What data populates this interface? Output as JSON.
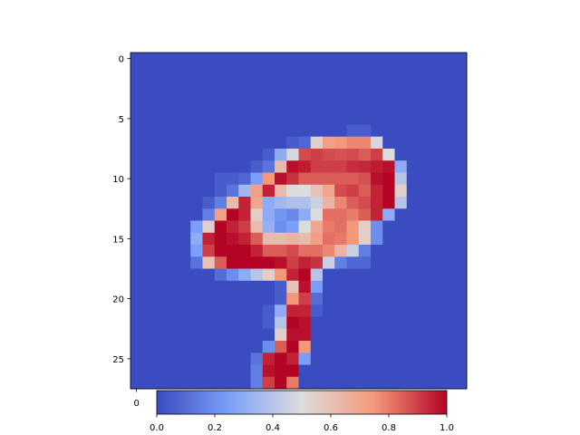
{
  "chart_data": {
    "type": "heatmap",
    "title": "",
    "xlabel": "",
    "ylabel": "",
    "colormap": "coolwarm",
    "cmap_stops": [
      [
        0.0,
        "#3b4cc0"
      ],
      [
        0.25,
        "#7b9ff9"
      ],
      [
        0.5,
        "#dddcdc"
      ],
      [
        0.75,
        "#f4987a"
      ],
      [
        1.0,
        "#b40426"
      ]
    ],
    "rows": 28,
    "cols": 28,
    "y_ticks": [
      0,
      5,
      10,
      15,
      20,
      25
    ],
    "x_ticks_visible": [
      0
    ],
    "colorbar_ticks": [
      0.0,
      0.2,
      0.4,
      0.6,
      0.8,
      1.0
    ],
    "colorbar_tick_labels": [
      "0.0",
      "0.2",
      "0.4",
      "0.6",
      "0.8",
      "1.0"
    ],
    "grid": false,
    "nonzero_cells": [
      {
        "row": 6,
        "cols": [
          18,
          19
        ],
        "values": [
          0.05,
          0.05
        ]
      },
      {
        "row": 7,
        "cols": [
          13,
          14,
          15,
          16,
          17,
          18,
          19,
          20
        ],
        "values": [
          0.05,
          0.08,
          0.55,
          0.72,
          0.75,
          0.78,
          0.78,
          0.48
        ]
      },
      {
        "row": 8,
        "cols": [
          11,
          12,
          13,
          14,
          15,
          16,
          17,
          18,
          19,
          20,
          21
        ],
        "values": [
          0.05,
          0.3,
          0.48,
          0.88,
          0.9,
          0.88,
          0.87,
          0.88,
          0.85,
          0.9,
          0.5
        ]
      },
      {
        "row": 9,
        "cols": [
          10,
          11,
          12,
          13,
          14,
          15,
          16,
          17,
          18,
          19,
          20,
          21,
          22
        ],
        "values": [
          0.05,
          0.12,
          0.62,
          0.98,
          0.96,
          0.9,
          0.9,
          0.9,
          0.93,
          0.94,
          0.96,
          0.98,
          0.3
        ]
      },
      {
        "row": 10,
        "cols": [
          7,
          8,
          9,
          10,
          11,
          12,
          13,
          14,
          15,
          16,
          17,
          18,
          19,
          20,
          21,
          22
        ],
        "values": [
          0.05,
          0.05,
          0.08,
          0.25,
          0.75,
          0.98,
          0.92,
          0.85,
          0.85,
          0.85,
          0.85,
          0.85,
          0.87,
          0.98,
          1.0,
          0.4
        ]
      },
      {
        "row": 11,
        "cols": [
          7,
          8,
          9,
          10,
          11,
          12,
          13,
          14,
          15,
          16,
          17,
          18,
          19,
          20,
          21,
          22
        ],
        "values": [
          0.05,
          0.12,
          0.35,
          0.72,
          0.95,
          0.62,
          0.5,
          0.5,
          0.6,
          0.7,
          0.88,
          0.9,
          0.85,
          0.95,
          1.0,
          0.55
        ]
      },
      {
        "row": 12,
        "cols": [
          6,
          7,
          8,
          9,
          10,
          11,
          12,
          13,
          14,
          15,
          16,
          17,
          18,
          19,
          20,
          21,
          22
        ],
        "values": [
          0.05,
          0.15,
          0.62,
          0.95,
          0.7,
          0.3,
          0.35,
          0.38,
          0.38,
          0.45,
          0.65,
          0.78,
          0.85,
          0.88,
          0.95,
          1.0,
          0.4
        ]
      },
      {
        "row": 13,
        "cols": [
          6,
          7,
          8,
          9,
          10,
          11,
          12,
          13,
          14,
          15,
          16,
          17,
          18,
          19,
          20,
          21
        ],
        "values": [
          0.15,
          0.72,
          1.0,
          0.95,
          0.55,
          0.3,
          0.22,
          0.18,
          0.3,
          0.5,
          0.82,
          0.82,
          0.8,
          0.85,
          0.95,
          0.3
        ]
      },
      {
        "row": 14,
        "cols": [
          5,
          6,
          7,
          8,
          9,
          10,
          11,
          12,
          13,
          14,
          15,
          16,
          17,
          18,
          19,
          20
        ],
        "values": [
          0.25,
          0.55,
          1.0,
          0.95,
          0.9,
          0.62,
          0.32,
          0.2,
          0.25,
          0.5,
          0.7,
          0.8,
          0.82,
          0.75,
          0.55,
          0.2
        ]
      },
      {
        "row": 15,
        "cols": [
          5,
          6,
          7,
          8,
          9,
          10,
          11,
          12,
          13,
          14,
          15,
          16,
          17,
          18,
          19,
          20
        ],
        "values": [
          0.3,
          0.95,
          1.0,
          0.98,
          0.95,
          0.85,
          0.62,
          0.62,
          0.65,
          0.62,
          0.72,
          0.82,
          0.8,
          0.75,
          0.55,
          0.2
        ]
      },
      {
        "row": 16,
        "cols": [
          5,
          6,
          7,
          8,
          9,
          10,
          11,
          12,
          13,
          14,
          15,
          16,
          17,
          18,
          19
        ],
        "values": [
          0.25,
          0.9,
          1.0,
          1.0,
          1.0,
          0.95,
          0.85,
          0.85,
          0.88,
          0.82,
          0.82,
          0.78,
          0.65,
          0.45,
          0.15
        ]
      },
      {
        "row": 17,
        "cols": [
          5,
          6,
          7,
          8,
          9,
          10,
          11,
          12,
          13,
          14,
          15,
          16,
          17,
          18,
          19
        ],
        "values": [
          0.12,
          0.6,
          0.85,
          1.0,
          1.0,
          1.0,
          1.0,
          0.98,
          0.9,
          0.95,
          0.92,
          0.45,
          0.15,
          0.08,
          0.08
        ]
      },
      {
        "row": 18,
        "cols": [
          7,
          8,
          9,
          10,
          11,
          12,
          13,
          14,
          15
        ],
        "values": [
          0.1,
          0.2,
          0.3,
          0.4,
          0.55,
          0.75,
          0.95,
          1.0,
          0.4
        ]
      },
      {
        "row": 19,
        "cols": [
          12,
          13,
          14,
          15
        ],
        "values": [
          0.05,
          0.6,
          0.98,
          0.25
        ]
      },
      {
        "row": 20,
        "cols": [
          12,
          13,
          14,
          15
        ],
        "values": [
          0.05,
          0.75,
          0.9,
          0.1
        ]
      },
      {
        "row": 21,
        "cols": [
          11,
          12,
          13,
          14,
          15
        ],
        "values": [
          0.05,
          0.3,
          0.95,
          0.95,
          0.05
        ]
      },
      {
        "row": 22,
        "cols": [
          11,
          12,
          13,
          14
        ],
        "values": [
          0.05,
          0.4,
          1.0,
          0.98
        ]
      },
      {
        "row": 23,
        "cols": [
          12,
          13,
          14
        ],
        "values": [
          0.55,
          0.98,
          0.98
        ]
      },
      {
        "row": 24,
        "cols": [
          11,
          12,
          13,
          14
        ],
        "values": [
          0.2,
          0.85,
          1.0,
          0.75
        ]
      },
      {
        "row": 25,
        "cols": [
          10,
          11,
          12,
          13,
          14
        ],
        "values": [
          0.12,
          0.95,
          1.0,
          0.95,
          0.25
        ]
      },
      {
        "row": 26,
        "cols": [
          10,
          11,
          12,
          13
        ],
        "values": [
          0.15,
          0.98,
          1.0,
          1.0
        ]
      },
      {
        "row": 27,
        "cols": [
          10,
          11,
          12,
          13
        ],
        "values": [
          0.15,
          0.9,
          1.0,
          0.8
        ]
      }
    ]
  }
}
